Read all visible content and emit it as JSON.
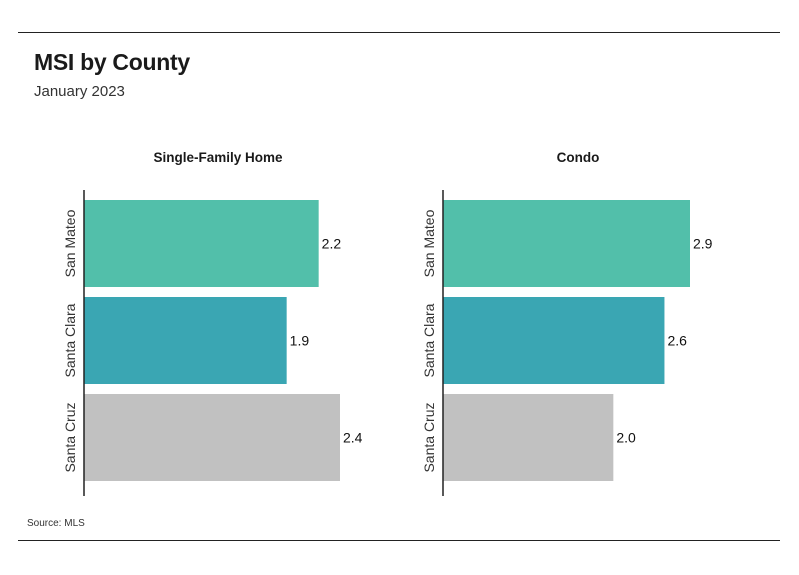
{
  "title": "MSI by County",
  "subtitle": "January 2023",
  "source": "Source:  MLS",
  "chart_data": [
    {
      "type": "bar",
      "orientation": "horizontal",
      "title": "Single-Family Home",
      "categories": [
        "San Mateo",
        "Santa Clara",
        "Santa Cruz"
      ],
      "values": [
        2.2,
        1.9,
        2.4
      ],
      "value_labels": [
        "2.2",
        "1.9",
        "2.4"
      ],
      "colors": [
        "#52bfaa",
        "#3aa6b3",
        "#c1c1c1"
      ],
      "xlim": [
        0,
        2.4
      ],
      "grid": false
    },
    {
      "type": "bar",
      "orientation": "horizontal",
      "title": "Condo",
      "categories": [
        "San Mateo",
        "Santa Clara",
        "Santa Cruz"
      ],
      "values": [
        2.9,
        2.6,
        2.0
      ],
      "value_labels": [
        "2.9",
        "2.6",
        "2.0"
      ],
      "colors": [
        "#52bfaa",
        "#3aa6b3",
        "#c1c1c1"
      ],
      "xlim": [
        0,
        2.9
      ],
      "grid": false
    }
  ]
}
